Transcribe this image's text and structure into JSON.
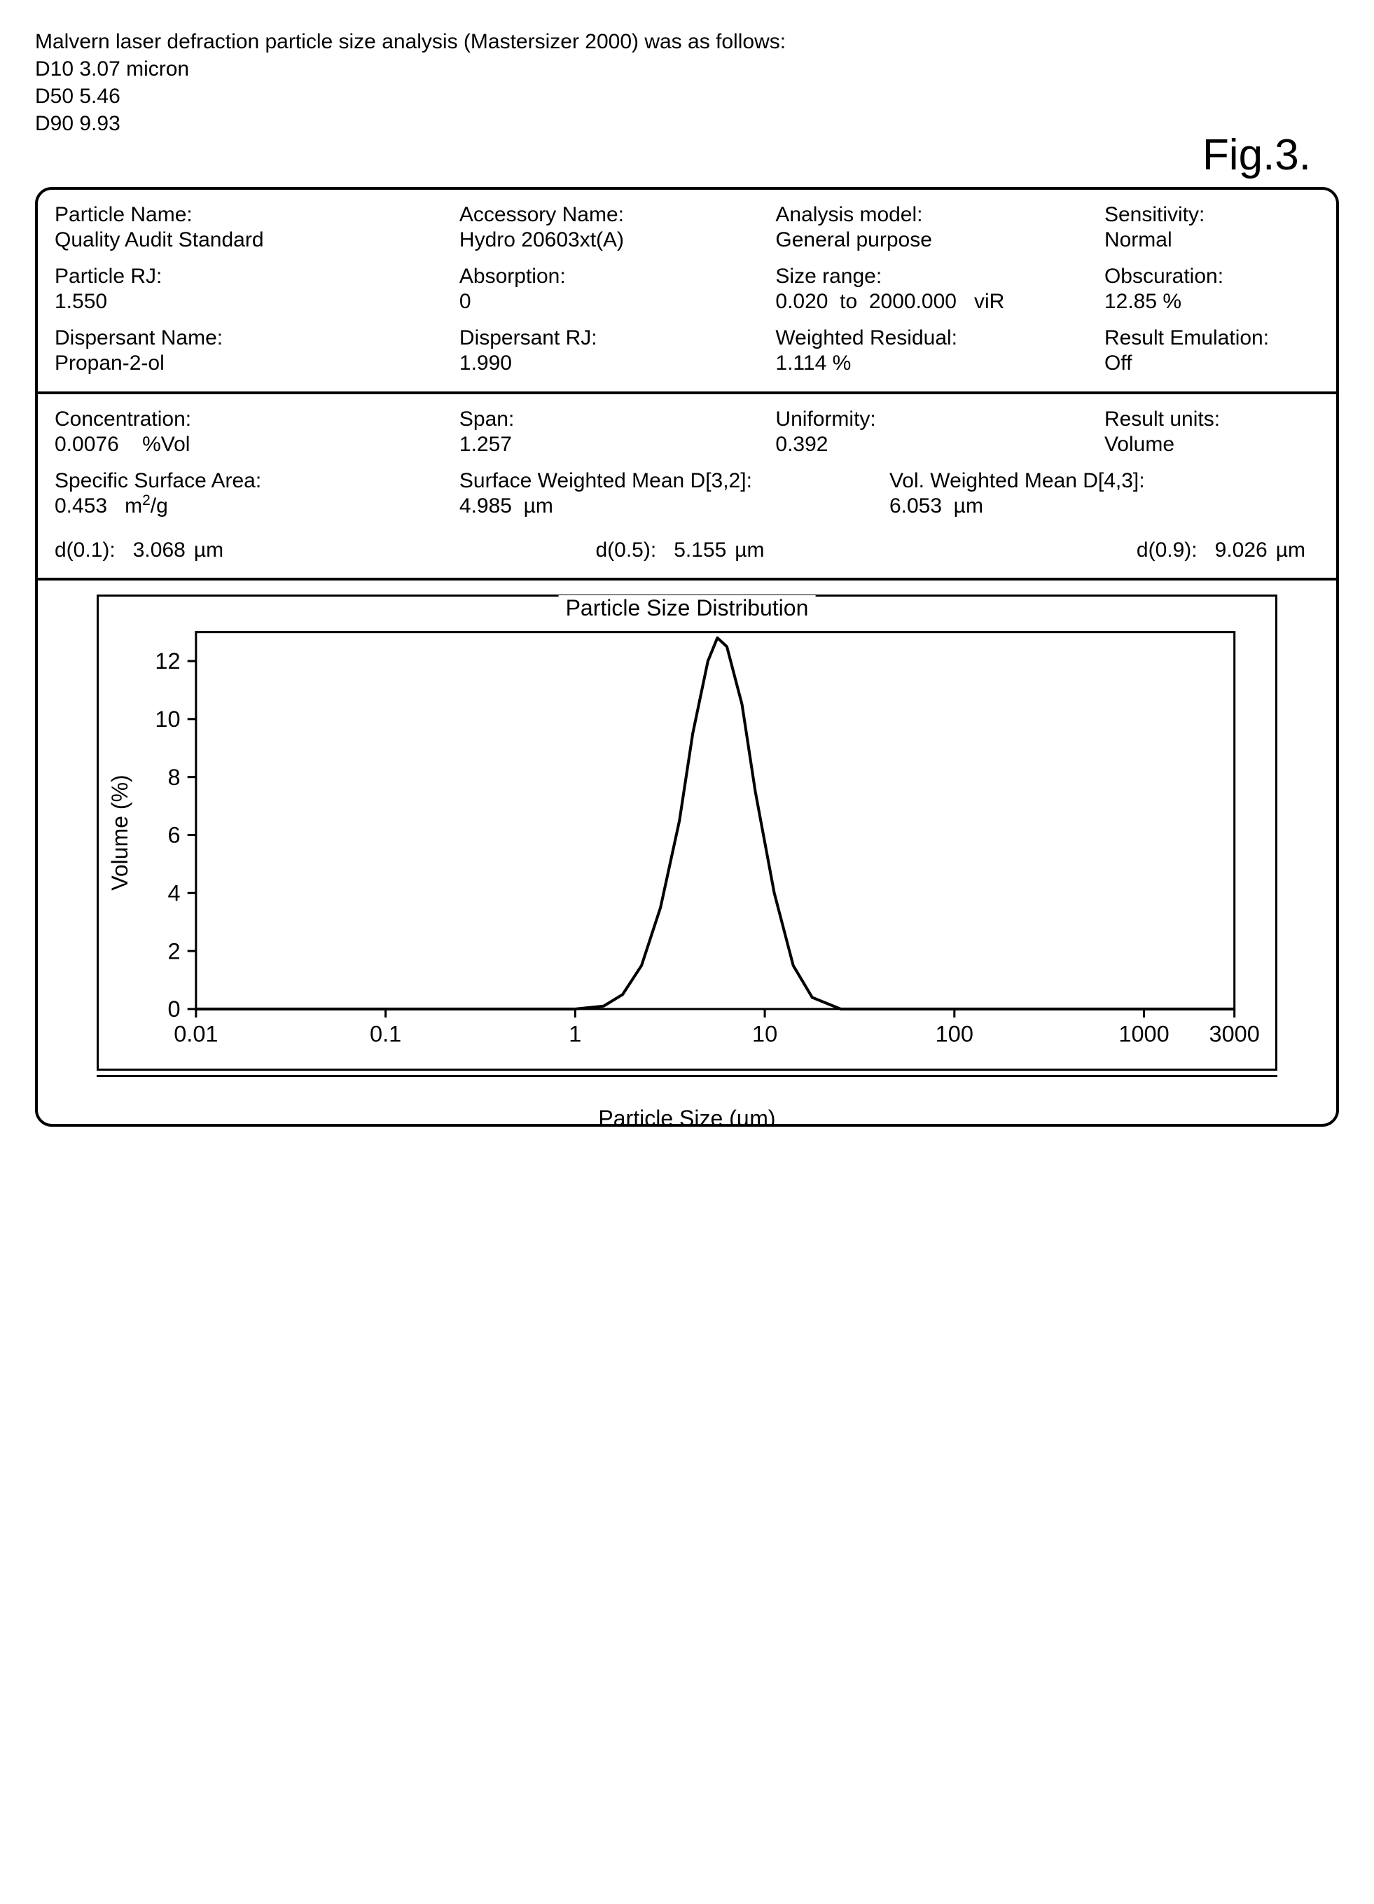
{
  "header": {
    "line1": "Malvern laser defraction particle size analysis (Mastersizer 2000) was as follows:",
    "line2": "D10 3.07 micron",
    "line3": "D50 5.46",
    "line4": "D90 9.93"
  },
  "figure_label": "Fig.3.",
  "section1": {
    "r1": {
      "a_label": "Particle Name:",
      "a_value": "Quality Audit Standard",
      "b_label": "Accessory Name:",
      "b_value": "Hydro 20603xt(A)",
      "c_label": "Analysis model:",
      "c_value": "General purpose",
      "d_label": "Sensitivity:",
      "d_value": "Normal"
    },
    "r2": {
      "a_label": "Particle RJ:",
      "a_value": "1.550",
      "b_label": "Absorption:",
      "b_value": "0",
      "c_label": "Size range:",
      "c_value": "0.020  to  2000.000   viR",
      "d_label": "Obscuration:",
      "d_value": "12.85 %"
    },
    "r3": {
      "a_label": "Dispersant Name:",
      "a_value": "Propan-2-ol",
      "b_label": "Dispersant RJ:",
      "b_value": "1.990",
      "c_label": "Weighted Residual:",
      "c_value": "1.114 %",
      "d_label": "Result Emulation:",
      "d_value": "Off"
    }
  },
  "section2": {
    "r1": {
      "a_label": "Concentration:",
      "a_value": "0.0076    %Vol",
      "b_label": "Span:",
      "b_value": "1.257",
      "c_label": "Uniformity:",
      "c_value": "0.392",
      "d_label": "Result units:",
      "d_value": "Volume"
    },
    "r2": {
      "a_label": "Specific Surface Area:",
      "a_value_num": "0.453",
      "a_value_unit_pre": "m",
      "a_value_unit_sup": "2",
      "a_value_unit_post": "/g",
      "b_label": "Surface Weighted Mean D[3,2]:",
      "b_value": "4.985  µm",
      "c_label": "Vol. Weighted Mean D[4,3]:",
      "c_value": "6.053  µm"
    },
    "d": {
      "d01_label": "d(0.1):",
      "d01_value": "3.068",
      "d01_unit": "µm",
      "d05_label": "d(0.5):",
      "d05_value": "5.155",
      "d05_unit": "µm",
      "d09_label": "d(0.9):",
      "d09_value": "9.026",
      "d09_unit": "µm"
    }
  },
  "chart": {
    "title": "Particle Size Distribution",
    "ylabel": "Volume (%)",
    "xlabel": "Particle Size (µm)",
    "x_ticks": [
      "0.01",
      "0.1",
      "1",
      "10",
      "100",
      "1000",
      "3000"
    ],
    "x_tick_positions_log": [
      -2,
      -1,
      0,
      1,
      2,
      3,
      3.477
    ],
    "y_ticks": [
      "0",
      "2",
      "4",
      "6",
      "8",
      "10",
      "12"
    ],
    "y_max": 13,
    "x_log_min": -2,
    "x_log_max": 3.477,
    "plot_border_inset": true,
    "curve_color": "#000000",
    "curve_width": 4,
    "background": "#ffffff",
    "border_color": "#000000",
    "data_points": [
      {
        "x_log": 0.0,
        "y": 0.0
      },
      {
        "x_log": 0.15,
        "y": 0.1
      },
      {
        "x_log": 0.25,
        "y": 0.5
      },
      {
        "x_log": 0.35,
        "y": 1.5
      },
      {
        "x_log": 0.45,
        "y": 3.5
      },
      {
        "x_log": 0.55,
        "y": 6.5
      },
      {
        "x_log": 0.62,
        "y": 9.5
      },
      {
        "x_log": 0.7,
        "y": 12.0
      },
      {
        "x_log": 0.75,
        "y": 12.8
      },
      {
        "x_log": 0.8,
        "y": 12.5
      },
      {
        "x_log": 0.88,
        "y": 10.5
      },
      {
        "x_log": 0.95,
        "y": 7.5
      },
      {
        "x_log": 1.05,
        "y": 4.0
      },
      {
        "x_log": 1.15,
        "y": 1.5
      },
      {
        "x_log": 1.25,
        "y": 0.4
      },
      {
        "x_log": 1.4,
        "y": 0.0
      }
    ]
  }
}
